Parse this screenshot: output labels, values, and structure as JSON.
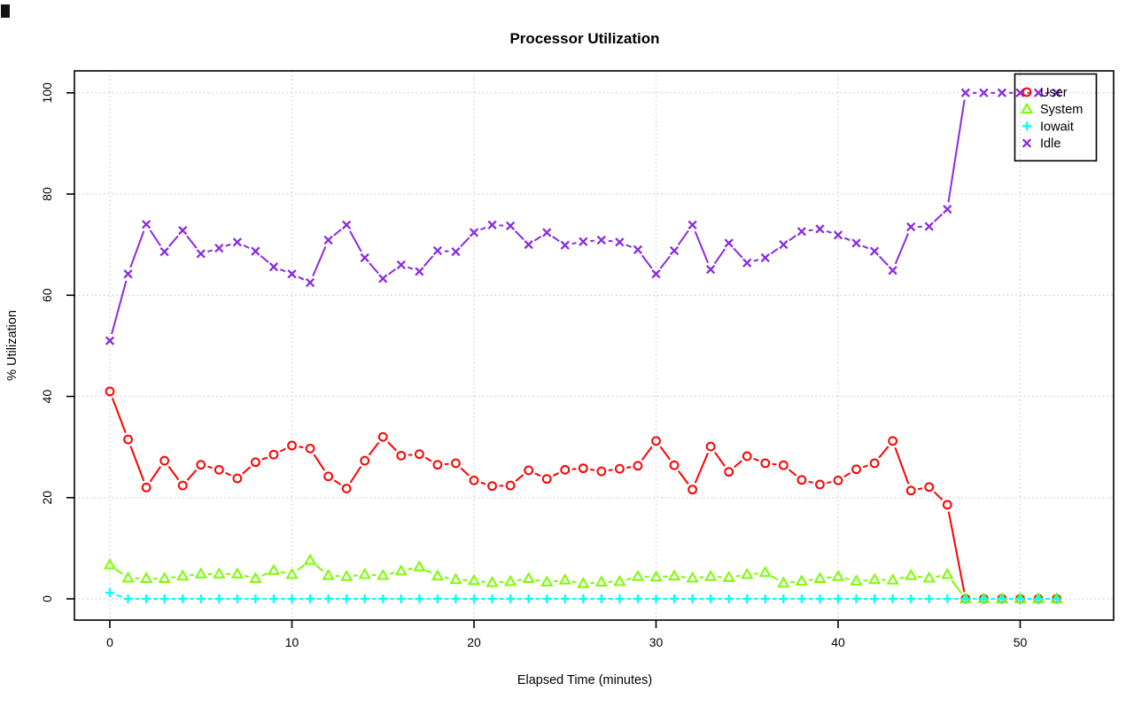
{
  "window": {
    "artifact": "screen-corner-mark"
  },
  "colors": {
    "background": "#ffffff",
    "axis": "#000000",
    "grid": "#c9c9c9",
    "user": "#ff0000",
    "system": "#7cfc00",
    "iowait": "#00ffff",
    "idle": "#8a2be2"
  },
  "chart_data": {
    "type": "line",
    "title": "Processor Utilization",
    "xlabel": "Elapsed Time (minutes)",
    "ylabel": "% Utilization",
    "x_ticks": [
      0,
      10,
      20,
      30,
      40,
      50
    ],
    "y_ticks": [
      0,
      20,
      40,
      60,
      80,
      100
    ],
    "xlim": [
      0,
      52
    ],
    "ylim": [
      0,
      100
    ],
    "grid": "dotted",
    "legend_position": "top-right",
    "x": [
      0,
      1,
      2,
      3,
      4,
      5,
      6,
      7,
      8,
      9,
      10,
      11,
      12,
      13,
      14,
      15,
      16,
      17,
      18,
      19,
      20,
      21,
      22,
      23,
      24,
      25,
      26,
      27,
      28,
      29,
      30,
      31,
      32,
      33,
      34,
      35,
      36,
      37,
      38,
      39,
      40,
      41,
      42,
      43,
      44,
      45,
      46,
      47,
      48,
      49,
      50,
      51,
      52
    ],
    "series": [
      {
        "name": "User",
        "color": "#ff0000",
        "marker": "circle",
        "values": [
          41,
          31.5,
          22,
          27.3,
          22.4,
          26.5,
          25.5,
          23.8,
          27,
          28.5,
          30.3,
          29.7,
          24.2,
          21.8,
          27.3,
          32,
          28.3,
          28.6,
          26.5,
          26.8,
          23.4,
          22.3,
          22.4,
          25.4,
          23.7,
          25.5,
          25.8,
          25.2,
          25.7,
          26.3,
          31.2,
          26.4,
          21.6,
          30.1,
          25.1,
          28.2,
          26.8,
          26.4,
          23.5,
          22.6,
          23.4,
          25.6,
          26.8,
          31.2,
          21.4,
          22.1,
          18.6,
          0,
          0,
          0,
          0,
          0,
          0
        ]
      },
      {
        "name": "System",
        "color": "#7cfc00",
        "marker": "triangle",
        "values": [
          6.7,
          4.1,
          4,
          4,
          4.5,
          4.9,
          4.9,
          4.9,
          4,
          5.6,
          4.8,
          7.6,
          4.6,
          4.4,
          4.8,
          4.6,
          5.5,
          6.3,
          4.5,
          3.8,
          3.6,
          3.2,
          3.4,
          4,
          3.3,
          3.7,
          3,
          3.3,
          3.4,
          4.4,
          4.3,
          4.5,
          4.1,
          4.4,
          4.2,
          4.8,
          5.2,
          3.1,
          3.5,
          4,
          4.4,
          3.5,
          3.8,
          3.7,
          4.6,
          4.1,
          4.8,
          0,
          0,
          0,
          0,
          0,
          0
        ]
      },
      {
        "name": "Iowait",
        "color": "#00ffff",
        "marker": "plus",
        "values": [
          1.2,
          0,
          0,
          0,
          0,
          0,
          0,
          0,
          0,
          0,
          0,
          0,
          0,
          0,
          0,
          0,
          0,
          0,
          0,
          0,
          0,
          0,
          0,
          0,
          0,
          0,
          0,
          0,
          0,
          0,
          0,
          0,
          0,
          0,
          0,
          0,
          0,
          0,
          0,
          0,
          0,
          0,
          0,
          0,
          0,
          0,
          0,
          0,
          0,
          0,
          0,
          0,
          0
        ]
      },
      {
        "name": "Idle",
        "color": "#8a2be2",
        "marker": "x",
        "values": [
          51,
          64.2,
          74,
          68.6,
          72.8,
          68.2,
          69.3,
          70.5,
          68.7,
          65.6,
          64.2,
          62.5,
          70.9,
          73.9,
          67.4,
          63.3,
          66,
          64.7,
          68.8,
          68.6,
          72.4,
          73.9,
          73.7,
          70,
          72.4,
          69.9,
          70.6,
          70.9,
          70.5,
          69,
          64.2,
          68.8,
          73.9,
          65.1,
          70.3,
          66.4,
          67.4,
          70,
          72.6,
          73.1,
          71.9,
          70.3,
          68.7,
          64.9,
          73.5,
          73.6,
          77,
          100,
          100,
          100,
          100,
          100,
          100
        ]
      }
    ]
  }
}
